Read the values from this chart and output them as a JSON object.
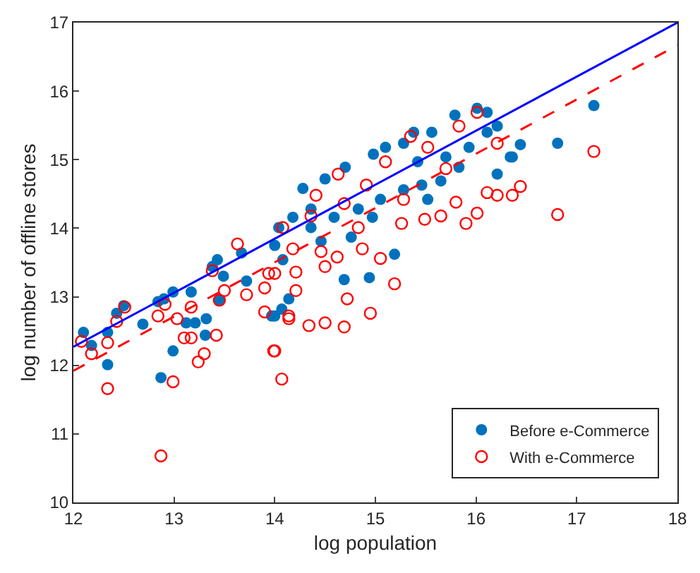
{
  "chart_data": {
    "type": "scatter",
    "xlabel": "log population",
    "ylabel": "log number of offline stores",
    "xlim": [
      12,
      18
    ],
    "ylim": [
      10,
      17
    ],
    "xticks": [
      12,
      13,
      14,
      15,
      16,
      17,
      18
    ],
    "yticks": [
      10,
      11,
      12,
      13,
      14,
      15,
      16,
      17
    ],
    "legend": "bottom right",
    "series": [
      {
        "name": "Before e-Commerce",
        "color": "#0072bd",
        "marker": "circle",
        "x": [
          12.1,
          12.18,
          12.34,
          12.34,
          12.43,
          12.5,
          12.69,
          12.84,
          12.9,
          12.99,
          12.99,
          12.87,
          13.17,
          13.12,
          13.21,
          13.32,
          13.31,
          13.38,
          13.43,
          13.49,
          13.45,
          13.67,
          13.72,
          14.0,
          14.07,
          14.14,
          13.97,
          14.69,
          14.94,
          15.19,
          14.76,
          14.28,
          14.5,
          14.7,
          14.98,
          15.1,
          15.28,
          15.38,
          15.56,
          15.79,
          16.01,
          16.11,
          16.21,
          16.21,
          16.34,
          15.46,
          15.52,
          14.18,
          14.36,
          14.59,
          14.83,
          15.05,
          15.28,
          15.65,
          15.83,
          15.93,
          14.0,
          14.08,
          14.46,
          14.36,
          14.04,
          14.97,
          15.42,
          15.7,
          17.17,
          16.81,
          16.44,
          16.36,
          16.11
        ],
        "values": [
          12.48,
          12.29,
          12.48,
          12.01,
          12.76,
          12.87,
          12.6,
          12.93,
          12.97,
          13.07,
          12.21,
          11.82,
          13.07,
          12.62,
          12.62,
          12.68,
          12.44,
          13.44,
          13.54,
          13.3,
          12.95,
          13.64,
          13.23,
          12.72,
          12.82,
          12.97,
          12.72,
          13.25,
          13.28,
          13.62,
          13.87,
          14.58,
          14.72,
          14.89,
          15.08,
          15.18,
          15.24,
          15.4,
          15.4,
          15.65,
          15.75,
          15.69,
          15.49,
          14.79,
          15.04,
          14.63,
          14.42,
          14.16,
          14.01,
          14.16,
          14.28,
          14.42,
          14.56,
          14.69,
          14.89,
          15.18,
          13.75,
          13.54,
          13.81,
          14.28,
          14.01,
          14.16,
          14.97,
          15.04,
          15.79,
          15.24,
          15.22,
          15.04,
          15.4
        ]
      },
      {
        "name": "With e-Commerce",
        "color": "#ff0000",
        "marker": "circle",
        "x": [
          12.08,
          12.18,
          12.34,
          12.34,
          12.43,
          12.51,
          12.84,
          12.99,
          12.87,
          12.91,
          13.03,
          13.1,
          13.17,
          13.17,
          13.24,
          13.3,
          13.42,
          13.38,
          13.45,
          13.5,
          13.72,
          13.63,
          13.9,
          13.9,
          13.99,
          14.07,
          14.0,
          14.14,
          14.0,
          14.14,
          14.34,
          14.5,
          14.69,
          14.95,
          14.72,
          15.19,
          15.05,
          14.21,
          14.21,
          14.5,
          14.62,
          14.87,
          15.26,
          15.49,
          15.65,
          15.9,
          16.01,
          15.8,
          16.11,
          16.21,
          16.36,
          16.21,
          15.83,
          16.01,
          15.35,
          14.91,
          14.69,
          14.36,
          14.08,
          14.63,
          15.1,
          15.52,
          15.7,
          14.41,
          14.83,
          15.28,
          13.94,
          14.18,
          14.46,
          17.17,
          16.81,
          16.44
        ],
        "values": [
          12.35,
          12.17,
          12.33,
          11.66,
          12.64,
          12.85,
          12.72,
          11.76,
          10.68,
          12.89,
          12.68,
          12.4,
          12.4,
          12.85,
          12.05,
          12.17,
          12.44,
          13.38,
          12.95,
          13.09,
          13.03,
          13.77,
          13.13,
          12.78,
          12.21,
          11.8,
          13.34,
          12.72,
          12.21,
          12.68,
          12.58,
          12.62,
          12.56,
          12.76,
          12.97,
          13.19,
          13.56,
          13.09,
          13.36,
          13.44,
          13.58,
          13.7,
          14.07,
          14.13,
          14.18,
          14.07,
          14.22,
          14.38,
          14.52,
          14.48,
          14.48,
          15.24,
          15.49,
          15.69,
          15.34,
          14.63,
          14.36,
          14.18,
          14.01,
          14.79,
          14.97,
          15.18,
          14.87,
          14.48,
          14.01,
          14.42,
          13.34,
          13.7,
          13.66,
          15.12,
          14.2,
          14.61
        ]
      },
      {
        "type": "line",
        "color": "#0000ff",
        "marker": "none",
        "line_style": "solid",
        "x": [
          12,
          18
        ],
        "values": [
          12.27,
          17.0
        ]
      },
      {
        "type": "line",
        "color": "#ff0000",
        "marker": "none",
        "line_style": "dashed",
        "x": [
          12,
          18
        ],
        "values": [
          11.92,
          16.67
        ]
      }
    ]
  }
}
